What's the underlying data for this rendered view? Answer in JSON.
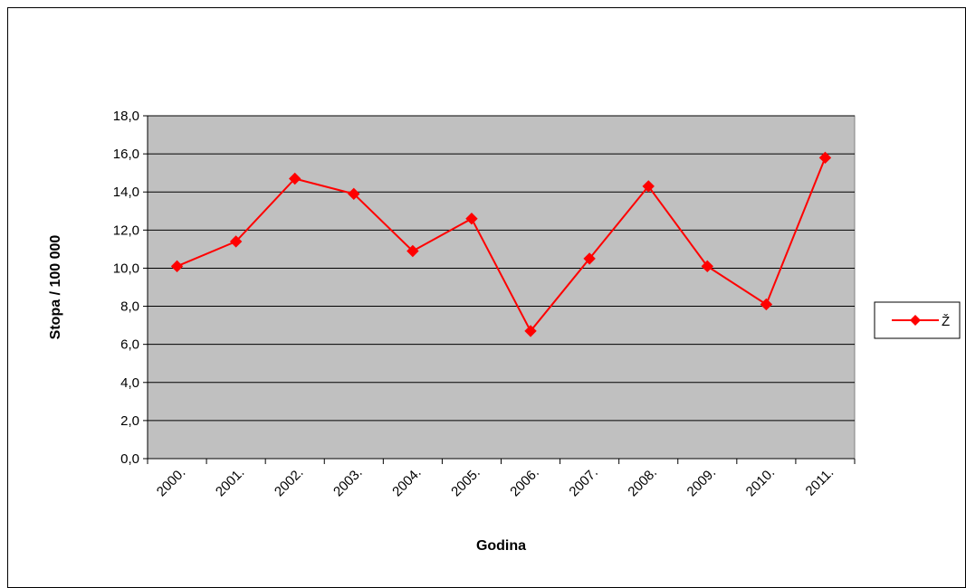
{
  "chart_data": {
    "type": "line",
    "title": "",
    "xlabel": "Godina",
    "ylabel": "Stopa / 100 000",
    "categories": [
      "2000.",
      "2001.",
      "2002.",
      "2003.",
      "2004.",
      "2005.",
      "2006.",
      "2007.",
      "2008.",
      "2009.",
      "2010.",
      "2011."
    ],
    "series": [
      {
        "name": "Ž",
        "values": [
          10.1,
          11.4,
          14.7,
          13.9,
          10.9,
          12.6,
          6.7,
          10.5,
          14.3,
          10.1,
          8.1,
          15.8
        ],
        "color": "#ff0000",
        "marker": "diamond"
      }
    ],
    "ylim": [
      0,
      18
    ],
    "yticks": [
      "0,0",
      "2,0",
      "4,0",
      "6,0",
      "8,0",
      "10,0",
      "12,0",
      "14,0",
      "16,0",
      "18,0"
    ],
    "grid": true,
    "plot_background": "#c0c0c0",
    "legend_position": "right"
  }
}
